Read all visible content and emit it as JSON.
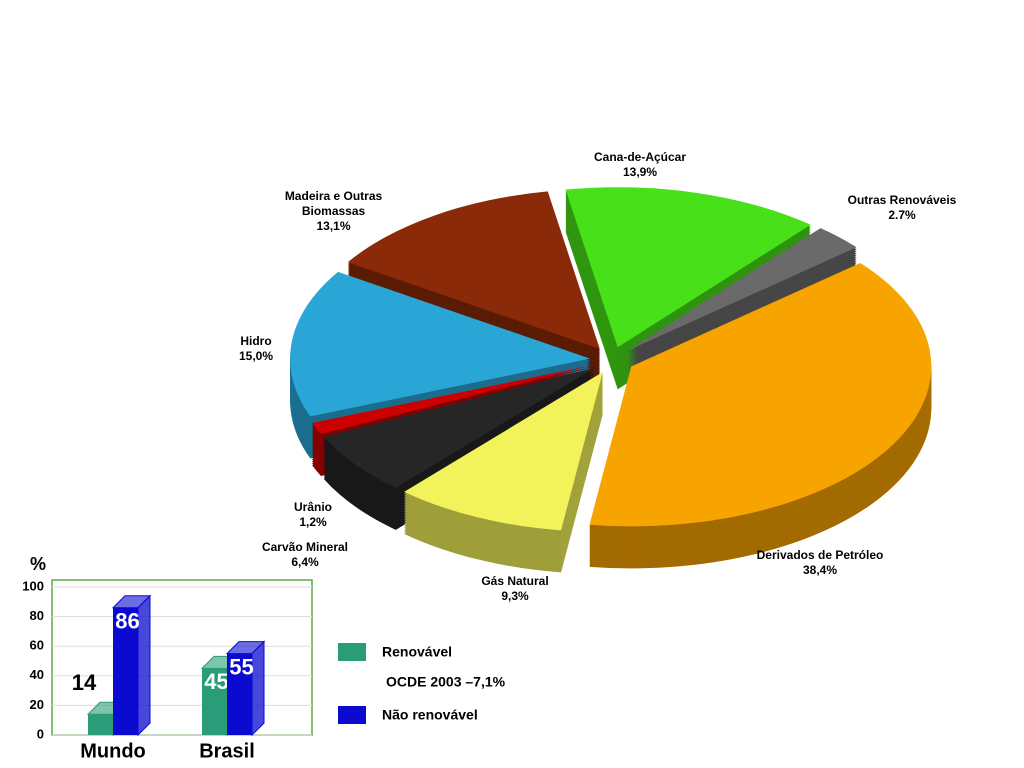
{
  "chart_data": [
    {
      "type": "pie",
      "labels": [
        "Cana-de-Açúcar",
        "Outras Renováveis",
        "Derivados de Petróleo",
        "Gás Natural",
        "Carvão Mineral",
        "Urânio",
        "Hidro",
        "Madeira e Outras Biomassas"
      ],
      "values": [
        13.9,
        2.7,
        38.4,
        9.3,
        6.4,
        1.2,
        15.0,
        13.1
      ],
      "value_labels": [
        "13,9%",
        "2.7%",
        "38,4%",
        "9,3%",
        "6,4%",
        "1,2%",
        "15,0%",
        "13,1%"
      ],
      "colors": [
        "#48e018",
        "#6a6a6a",
        "#f7a400",
        "#f2f25a",
        "#262626",
        "#cc0000",
        "#2aa6d6",
        "#8a2a08"
      ]
    },
    {
      "type": "bar",
      "ylabel": "%",
      "categories": [
        "Mundo",
        "Brasil"
      ],
      "series": [
        {
          "name": "Renovável",
          "color": "#2a9c78",
          "values": [
            14,
            45
          ]
        },
        {
          "name": "Não renovável",
          "color": "#0a0ad0",
          "values": [
            86,
            55
          ]
        }
      ],
      "ylim": [
        0,
        100
      ],
      "yticks": [
        0,
        20,
        40,
        60,
        80,
        100
      ],
      "grid": true,
      "annotation": "OCDE 2003 –7,1%"
    }
  ]
}
